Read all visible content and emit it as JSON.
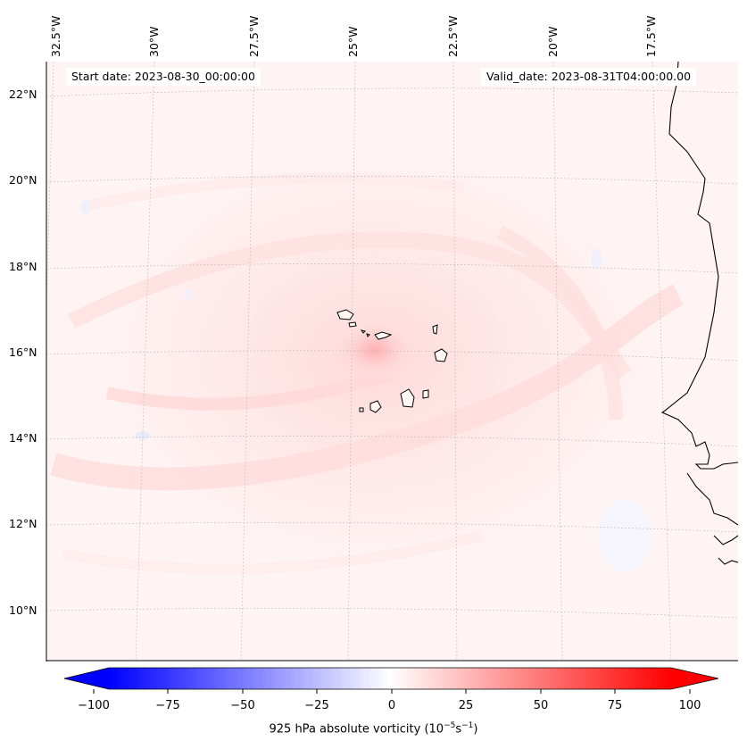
{
  "map": {
    "start_date": "Start date: 2023-08-30_00:00:00",
    "valid_date": "Valid_date: 2023-08-31T04:00:00.00",
    "lon_labels": [
      "32.5°W",
      "30°W",
      "27.5°W",
      "25°W",
      "22.5°W",
      "20°W",
      "17.5°W"
    ],
    "lat_labels": [
      "22°N",
      "20°N",
      "18°N",
      "16°N",
      "14°N",
      "12°N",
      "10°N"
    ]
  },
  "colorbar": {
    "ticks": [
      "−100",
      "−75",
      "−50",
      "−25",
      "0",
      "25",
      "50",
      "75",
      "100"
    ],
    "min": -100,
    "max": 100,
    "label_prefix": "925 hPa absolute vorticity (10",
    "label_exp1": "−5",
    "label_mid": "s",
    "label_exp2": "−1",
    "label_suffix": ")",
    "low_color": "#0000ff",
    "mid_color": "#ffffff",
    "high_color": "#ff0000"
  }
}
